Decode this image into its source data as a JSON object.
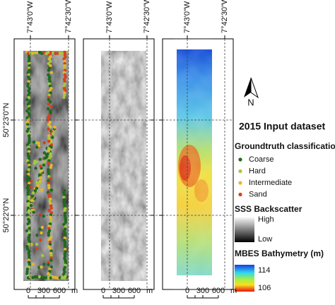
{
  "longitude_labels": [
    "7°43'0\"W",
    "7°42'30\"W"
  ],
  "latitude_labels": [
    "50°23'0\"N",
    "50°22'0\"N"
  ],
  "scale_bar": [
    "0",
    "300",
    "600",
    "m"
  ],
  "north_arrow": "N",
  "title": "2015 Input dataset",
  "groundtruth": {
    "title": "Groundtruth classification",
    "classes": [
      {
        "label": "Coarse",
        "color": "#1d6a1d"
      },
      {
        "label": "Hard",
        "color": "#a8c83a"
      },
      {
        "label": "Intermediate",
        "color": "#e8b82a"
      },
      {
        "label": "Sand",
        "color": "#d8401e"
      }
    ]
  },
  "backscatter": {
    "title": "SSS Backscatter",
    "high": "High",
    "low": "Low"
  },
  "bathymetry": {
    "title": "MBES Bathymetry (m)",
    "max": 114,
    "min": 106
  }
}
